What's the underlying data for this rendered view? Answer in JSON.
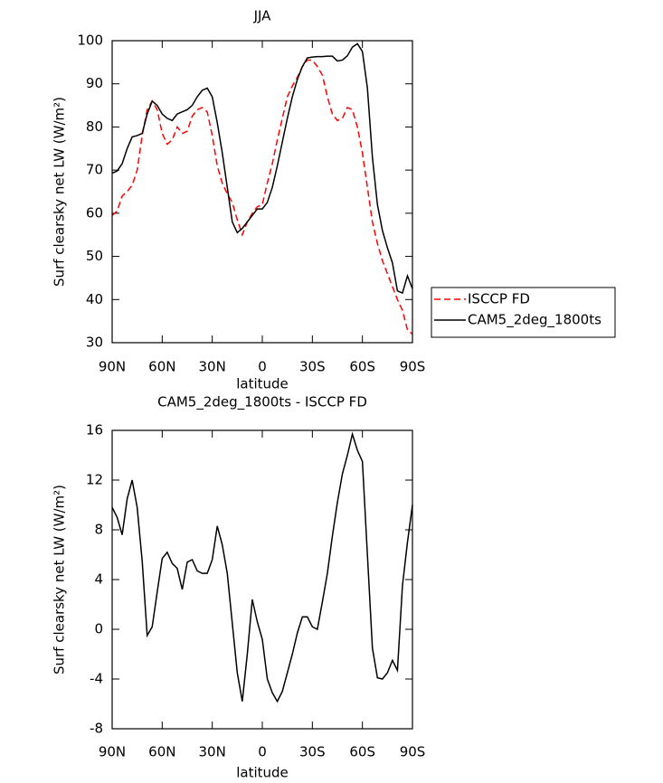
{
  "chart_data": [
    {
      "type": "line",
      "title": "JJA",
      "x_label": "latitude",
      "y_label": "Surf clearsky net LW (W/m²)",
      "x": [
        90,
        87,
        84,
        81,
        78,
        75,
        72,
        69,
        66,
        63,
        60,
        57,
        54,
        51,
        48,
        45,
        42,
        39,
        36,
        33,
        30,
        27,
        24,
        21,
        18,
        15,
        12,
        9,
        6,
        3,
        0,
        -3,
        -6,
        -9,
        -12,
        -15,
        -18,
        -21,
        -24,
        -27,
        -30,
        -33,
        -36,
        -39,
        -42,
        -45,
        -48,
        -51,
        -54,
        -57,
        -60,
        -63,
        -66,
        -69,
        -72,
        -75,
        -78,
        -81,
        -84,
        -87,
        -90
      ],
      "xlim": [
        90,
        -90
      ],
      "xticks": [
        {
          "value": 90,
          "label": "90N"
        },
        {
          "value": 60,
          "label": "60N"
        },
        {
          "value": 30,
          "label": "30N"
        },
        0,
        {
          "value": -30,
          "label": "30S"
        },
        {
          "value": -60,
          "label": "60S"
        },
        {
          "value": -90,
          "label": "90S"
        }
      ],
      "ylim": [
        30,
        100
      ],
      "yticks": [
        30,
        40,
        50,
        60,
        70,
        80,
        90,
        100
      ],
      "legend": "right",
      "series": [
        {
          "name": "ISCCP FD",
          "color": "#ff0000",
          "dash": "dashed",
          "values": [
            59.5,
            60.5,
            64,
            65,
            66.5,
            70,
            78,
            84,
            86,
            84,
            78.5,
            76,
            77,
            80,
            78.5,
            79,
            82.5,
            84,
            84.5,
            83.5,
            78,
            71,
            67,
            64.5,
            62.5,
            58.5,
            55,
            58,
            60,
            61.5,
            62,
            67,
            71.5,
            77,
            82,
            87,
            89.5,
            91.5,
            94,
            95.5,
            95.5,
            94,
            92,
            87,
            83,
            81.5,
            82,
            84.5,
            84,
            80,
            74,
            66,
            58,
            53,
            49,
            46,
            43,
            40,
            37.5,
            33,
            32
          ]
        },
        {
          "name": "CAM5_2deg_1800ts",
          "color": "#000000",
          "values": [
            69.3,
            69.8,
            71.5,
            75,
            77.7,
            78,
            78.5,
            83,
            86,
            85,
            83,
            82,
            81.5,
            83,
            83.5,
            84,
            85,
            87,
            88.5,
            89,
            87,
            81,
            74,
            66,
            58,
            55.5,
            56.5,
            58,
            59.5,
            61,
            61,
            62.5,
            66,
            71,
            76.5,
            82,
            87,
            91,
            94,
            96,
            96.2,
            96.3,
            96.3,
            96.4,
            96.4,
            95.3,
            95.5,
            96.5,
            98.5,
            99.3,
            97.5,
            89,
            73,
            62,
            56,
            52,
            48.5,
            42,
            41.5,
            45.5,
            42.5
          ]
        }
      ]
    },
    {
      "type": "line",
      "title": "CAM5_2deg_1800ts - ISCCP FD",
      "x_label": "latitude",
      "y_label": "Surf clearsky net LW (W/m²)",
      "x": [
        90,
        87,
        84,
        81,
        78,
        75,
        72,
        69,
        66,
        63,
        60,
        57,
        54,
        51,
        48,
        45,
        42,
        39,
        36,
        33,
        30,
        27,
        24,
        21,
        18,
        15,
        12,
        9,
        6,
        3,
        0,
        -3,
        -6,
        -9,
        -12,
        -15,
        -18,
        -21,
        -24,
        -27,
        -30,
        -33,
        -36,
        -39,
        -42,
        -45,
        -48,
        -51,
        -54,
        -57,
        -60,
        -63,
        -66,
        -69,
        -72,
        -75,
        -78,
        -81,
        -84,
        -87,
        -90
      ],
      "xlim": [
        90,
        -90
      ],
      "xticks": [
        {
          "value": 90,
          "label": "90N"
        },
        {
          "value": 60,
          "label": "60N"
        },
        {
          "value": 30,
          "label": "30N"
        },
        0,
        {
          "value": -30,
          "label": "30S"
        },
        {
          "value": -60,
          "label": "60S"
        },
        {
          "value": -90,
          "label": "90S"
        }
      ],
      "ylim": [
        -8,
        16
      ],
      "yticks": [
        -8,
        -4,
        0,
        4,
        8,
        12,
        16
      ],
      "series": [
        {
          "color": "#000000",
          "values": [
            9.8,
            9.0,
            7.6,
            10.5,
            12.0,
            9.8,
            5.5,
            -0.5,
            0.2,
            3.0,
            5.7,
            6.2,
            5.3,
            4.9,
            3.2,
            5.4,
            5.6,
            4.7,
            4.5,
            4.5,
            5.6,
            8.3,
            6.8,
            4.5,
            0.5,
            -3.5,
            -5.8,
            -2,
            2.4,
            0.6,
            -0.8,
            -4,
            -5.1,
            -5.8,
            -5.0,
            -3.5,
            -2,
            -0.3,
            1.0,
            1.0,
            0.2,
            0,
            2.2,
            4.5,
            7.5,
            10.2,
            12.5,
            14,
            15.7,
            14.4,
            13.5,
            6,
            -1.5,
            -3.9,
            -4,
            -3.5,
            -2.5,
            -3.3,
            3.5,
            7,
            10
          ]
        }
      ]
    }
  ]
}
